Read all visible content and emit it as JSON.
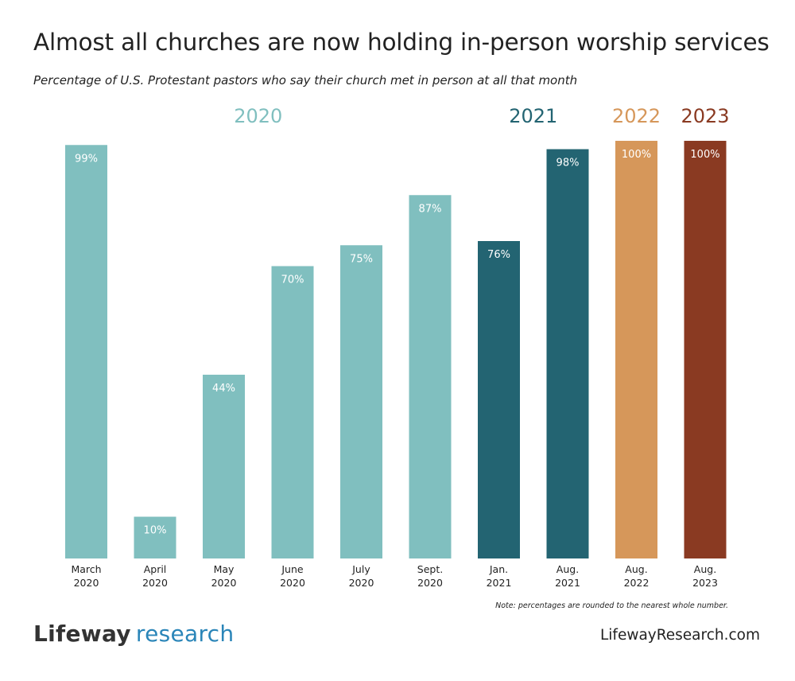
{
  "chart_data": {
    "type": "bar",
    "title": "Almost all churches are now holding in-person worship services",
    "subtitle": "Percentage of U.S. Protestant pastors who say their church met in person at all that month",
    "categories": [
      [
        "March",
        "2020"
      ],
      [
        "April",
        "2020"
      ],
      [
        "May",
        "2020"
      ],
      [
        "June",
        "2020"
      ],
      [
        "July",
        "2020"
      ],
      [
        "Sept.",
        "2020"
      ],
      [
        "Jan.",
        "2021"
      ],
      [
        "Aug.",
        "2021"
      ],
      [
        "Aug.",
        "2022"
      ],
      [
        "Aug.",
        "2023"
      ]
    ],
    "values": [
      99,
      10,
      44,
      70,
      75,
      87,
      76,
      98,
      100,
      100
    ],
    "value_labels": [
      "99%",
      "10%",
      "44%",
      "70%",
      "75%",
      "87%",
      "76%",
      "98%",
      "100%",
      "100%"
    ],
    "groups": [
      "2020",
      "2020",
      "2020",
      "2020",
      "2020",
      "2020",
      "2021",
      "2021",
      "2022",
      "2023"
    ],
    "group_labels": [
      {
        "label": "2020",
        "first": 0,
        "last": 5,
        "color": "#80bfbf"
      },
      {
        "label": "2021",
        "first": 6,
        "last": 7,
        "color": "#236472"
      },
      {
        "label": "2022",
        "first": 8,
        "last": 8,
        "color": "#d6975a"
      },
      {
        "label": "2023",
        "first": 9,
        "last": 9,
        "color": "#8a3a22"
      }
    ],
    "ylim": [
      0,
      100
    ],
    "xlabel": "",
    "ylabel": ""
  },
  "footer": {
    "note": "Note: percentages are rounded to the nearest whole number.",
    "logo_brand": "Lifeway",
    "logo_research": "research",
    "website": "LifewayResearch.com"
  },
  "colors": {
    "bar_label": "#ffffff",
    "axis_label": "#222222"
  }
}
